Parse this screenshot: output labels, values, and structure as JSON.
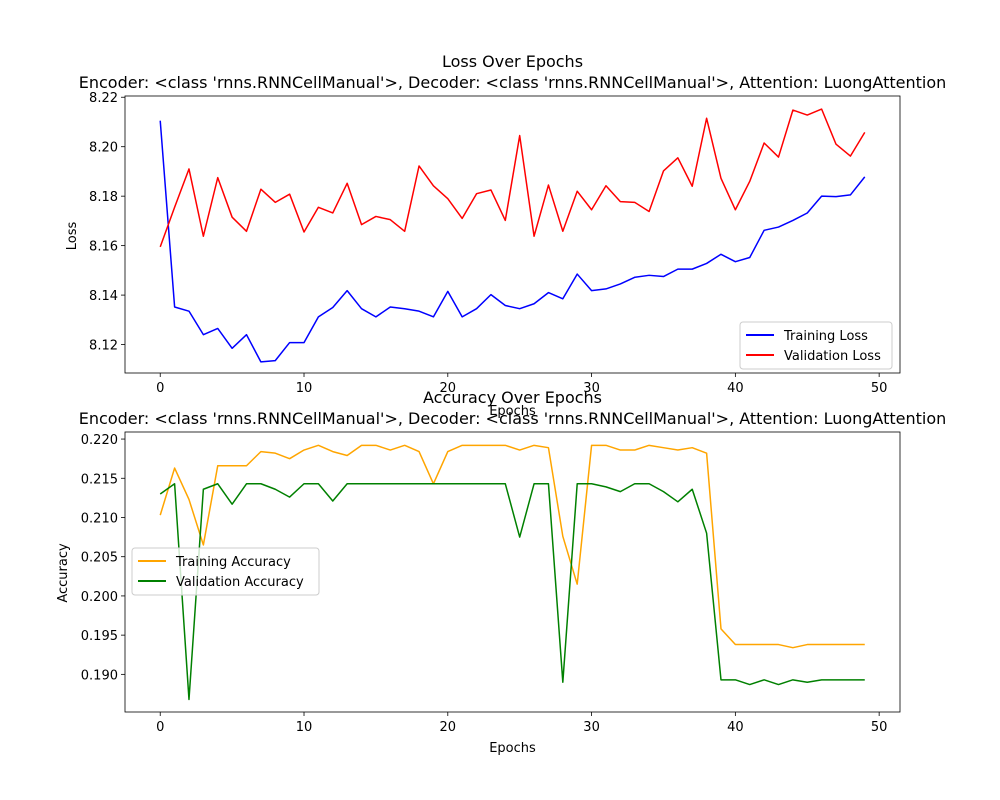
{
  "chart_data": [
    {
      "type": "line",
      "title_line1": "Loss Over Epochs",
      "title_line2": "Encoder: <class 'rnns.RNNCellManual'>, Decoder: <class 'rnns.RNNCellManual'>, Attention: LuongAttention",
      "xlabel": "Epochs",
      "ylabel": "Loss",
      "xlim": [
        -2.45,
        51.45
      ],
      "ylim": [
        8.1085,
        8.2205
      ],
      "xticks": [
        0,
        10,
        20,
        30,
        40,
        50
      ],
      "yticks": [
        8.12,
        8.14,
        8.16,
        8.18,
        8.2,
        8.22
      ],
      "ytick_labels": [
        "8.12",
        "8.14",
        "8.16",
        "8.18",
        "8.20",
        "8.22"
      ],
      "grid": false,
      "legend_position": "lower right",
      "x": [
        0,
        1,
        2,
        3,
        4,
        5,
        6,
        7,
        8,
        9,
        10,
        11,
        12,
        13,
        14,
        15,
        16,
        17,
        18,
        19,
        20,
        21,
        22,
        23,
        24,
        25,
        26,
        27,
        28,
        29,
        30,
        31,
        32,
        33,
        34,
        35,
        36,
        37,
        38,
        39,
        40,
        41,
        42,
        43,
        44,
        45,
        46,
        47,
        48,
        49
      ],
      "series": [
        {
          "name": "Training Loss",
          "color": "#0000ff",
          "values": [
            8.2105,
            8.1352,
            8.1335,
            8.124,
            8.1265,
            8.1185,
            8.124,
            8.113,
            8.1135,
            8.1208,
            8.1208,
            8.1312,
            8.135,
            8.1418,
            8.1345,
            8.1312,
            8.1352,
            8.1345,
            8.1335,
            8.1312,
            8.1415,
            8.1312,
            8.1345,
            8.1402,
            8.1358,
            8.1345,
            8.1365,
            8.141,
            8.1385,
            8.1485,
            8.1418,
            8.1425,
            8.1445,
            8.1472,
            8.148,
            8.1475,
            8.1505,
            8.1505,
            8.1528,
            8.1565,
            8.1535,
            8.1552,
            8.1662,
            8.1675,
            8.1702,
            8.1732,
            8.18,
            8.1798,
            8.1805,
            8.1878
          ]
        },
        {
          "name": "Validation Loss",
          "color": "#ff0000",
          "values": [
            8.1595,
            8.1755,
            8.191,
            8.1638,
            8.1875,
            8.1715,
            8.1658,
            8.1828,
            8.1775,
            8.1808,
            8.1655,
            8.1755,
            8.1732,
            8.1852,
            8.1685,
            8.1718,
            8.1705,
            8.1658,
            8.1922,
            8.1842,
            8.179,
            8.171,
            8.181,
            8.1825,
            8.1702,
            8.2045,
            8.1638,
            8.1845,
            8.1658,
            8.182,
            8.1745,
            8.1842,
            8.1778,
            8.1775,
            8.1738,
            8.1902,
            8.1955,
            8.184,
            8.2115,
            8.1872,
            8.1745,
            8.186,
            8.2015,
            8.1958,
            8.2148,
            8.2128,
            8.2152,
            8.201,
            8.1962,
            8.2058
          ]
        }
      ]
    },
    {
      "type": "line",
      "title_line1": "Accuracy Over Epochs",
      "title_line2": "Encoder: <class 'rnns.RNNCellManual'>, Decoder: <class 'rnns.RNNCellManual'>, Attention: LuongAttention",
      "xlabel": "Epochs",
      "ylabel": "Accuracy",
      "xlim": [
        -2.45,
        51.45
      ],
      "ylim": [
        0.1852,
        0.2209
      ],
      "xticks": [
        0,
        10,
        20,
        30,
        40,
        50
      ],
      "yticks": [
        0.19,
        0.195,
        0.2,
        0.205,
        0.21,
        0.215,
        0.22
      ],
      "ytick_labels": [
        "0.190",
        "0.195",
        "0.200",
        "0.205",
        "0.210",
        "0.215",
        "0.220"
      ],
      "grid": false,
      "legend_position": "center left",
      "x": [
        0,
        1,
        2,
        3,
        4,
        5,
        6,
        7,
        8,
        9,
        10,
        11,
        12,
        13,
        14,
        15,
        16,
        17,
        18,
        19,
        20,
        21,
        22,
        23,
        24,
        25,
        26,
        27,
        28,
        29,
        30,
        31,
        32,
        33,
        34,
        35,
        36,
        37,
        38,
        39,
        40,
        41,
        42,
        43,
        44,
        45,
        46,
        47,
        48,
        49
      ],
      "series": [
        {
          "name": "Training Accuracy",
          "color": "#ffa500",
          "values": [
            0.2103,
            0.2163,
            0.2123,
            0.2065,
            0.2166,
            0.2166,
            0.2166,
            0.2184,
            0.2182,
            0.2175,
            0.2186,
            0.2192,
            0.2184,
            0.2179,
            0.2192,
            0.2192,
            0.2186,
            0.2192,
            0.2184,
            0.2143,
            0.2184,
            0.2192,
            0.2192,
            0.2192,
            0.2192,
            0.2186,
            0.2192,
            0.2189,
            0.2076,
            0.2015,
            0.2192,
            0.2192,
            0.2186,
            0.2186,
            0.2192,
            0.2189,
            0.2186,
            0.2189,
            0.2182,
            0.1958,
            0.1938,
            0.1938,
            0.1938,
            0.1938,
            0.1934,
            0.1938,
            0.1938,
            0.1938,
            0.1938,
            0.1938
          ]
        },
        {
          "name": "Validation Accuracy",
          "color": "#008000",
          "values": [
            0.213,
            0.2143,
            0.1868,
            0.2136,
            0.2143,
            0.2117,
            0.2143,
            0.2143,
            0.2136,
            0.2126,
            0.2143,
            0.2143,
            0.2121,
            0.2143,
            0.2143,
            0.2143,
            0.2143,
            0.2143,
            0.2143,
            0.2143,
            0.2143,
            0.2143,
            0.2143,
            0.2143,
            0.2143,
            0.2075,
            0.2143,
            0.2143,
            0.189,
            0.2143,
            0.2143,
            0.2139,
            0.2133,
            0.2143,
            0.2143,
            0.2133,
            0.212,
            0.2136,
            0.208,
            0.1893,
            0.1893,
            0.1887,
            0.1893,
            0.1887,
            0.1893,
            0.189,
            0.1893,
            0.1893,
            0.1893,
            0.1893
          ]
        }
      ]
    }
  ]
}
